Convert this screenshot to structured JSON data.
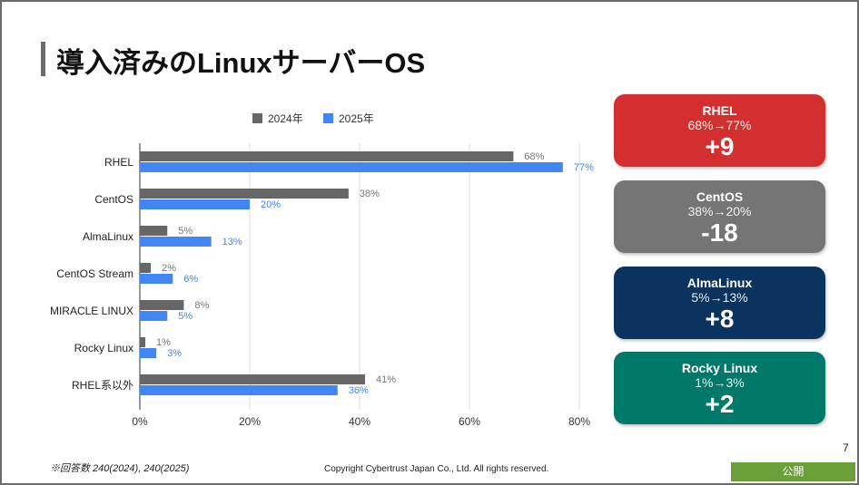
{
  "title": "導入済みのLinuxサーバーOS",
  "chart_data": {
    "type": "bar",
    "orientation": "horizontal",
    "categories": [
      "RHEL",
      "CentOS",
      "AlmaLinux",
      "CentOS Stream",
      "MIRACLE LINUX",
      "Rocky Linux",
      "RHEL系以外"
    ],
    "series": [
      {
        "name": "2024年",
        "color": "#666666",
        "values": [
          68,
          38,
          5,
          2,
          8,
          1,
          41
        ],
        "labels": [
          "68%",
          "38%",
          "5%",
          "2%",
          "8%",
          "1%",
          "41%"
        ]
      },
      {
        "name": "2025年",
        "color": "#4285f4",
        "values": [
          77,
          20,
          13,
          6,
          5,
          3,
          36
        ],
        "labels": [
          "77%",
          "20%",
          "13%",
          "6%",
          "5%",
          "3%",
          "36%"
        ]
      }
    ],
    "xlim": [
      0,
      80
    ],
    "xticks": [
      0,
      20,
      40,
      60,
      80
    ],
    "xtick_labels": [
      "0%",
      "20%",
      "40%",
      "60%",
      "80%"
    ],
    "legend": "top",
    "grid": true
  },
  "cards": [
    {
      "name": "RHEL",
      "change": "68%→77%",
      "delta": "+9",
      "color": "#d32f2f"
    },
    {
      "name": "CentOS",
      "change": "38%→20%",
      "delta": "-18",
      "color": "#757575"
    },
    {
      "name": "AlmaLinux",
      "change": "5%→13%",
      "delta": "+8",
      "color": "#0b3360"
    },
    {
      "name": "Rocky Linux",
      "change": "1%→3%",
      "delta": "+2",
      "color": "#00796b"
    }
  ],
  "footer": {
    "note": "※回答数 240(2024), 240(2025)",
    "copyright": "Copyright Cybertrust Japan Co., Ltd. All rights reserved.",
    "page": "7",
    "label": "公開"
  }
}
